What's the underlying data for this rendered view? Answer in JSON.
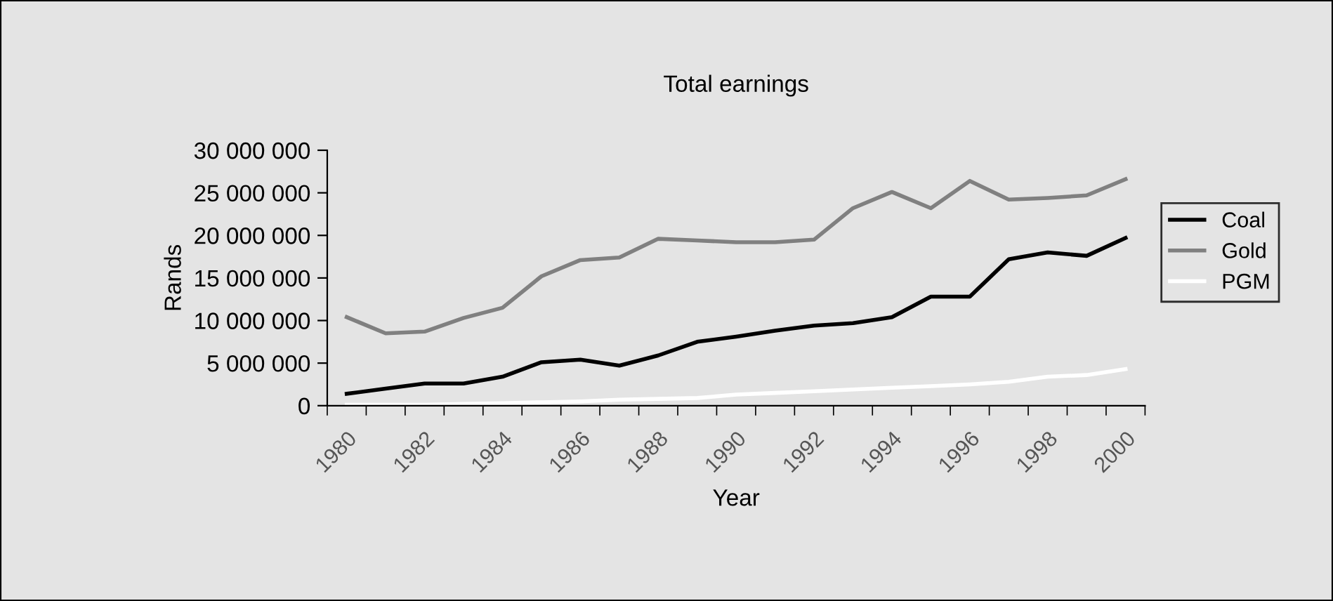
{
  "chart_data": {
    "type": "line",
    "title": "Total earnings",
    "xlabel": "Year",
    "ylabel": "Rands",
    "categories": [
      "1980",
      null,
      "1982",
      null,
      "1984",
      null,
      "1986",
      null,
      "1988",
      null,
      "1990",
      null,
      "1992",
      null,
      "1994",
      null,
      "1996",
      null,
      "1998",
      null,
      "2000"
    ],
    "series": [
      {
        "name": "Coal",
        "color": "#000000",
        "values": [
          1400000,
          2000000,
          2600000,
          2600000,
          3400000,
          5100000,
          5400000,
          4700000,
          5900000,
          7500000,
          8100000,
          8800000,
          9400000,
          9700000,
          10400000,
          12800000,
          12800000,
          17200000,
          18000000,
          17600000,
          19700000
        ]
      },
      {
        "name": "Gold",
        "color": "#808080",
        "values": [
          10400000,
          8500000,
          8700000,
          10300000,
          11500000,
          15200000,
          17100000,
          17400000,
          19600000,
          19400000,
          19200000,
          19200000,
          19500000,
          23200000,
          25100000,
          23200000,
          26400000,
          24200000,
          24400000,
          24700000,
          26600000
        ]
      },
      {
        "name": "PGM",
        "color": "#ffffff",
        "values": [
          100000,
          100000,
          100000,
          200000,
          300000,
          400000,
          500000,
          700000,
          800000,
          900000,
          1300000,
          1500000,
          1700000,
          1900000,
          2100000,
          2300000,
          2500000,
          2800000,
          3400000,
          3600000,
          4300000
        ]
      }
    ],
    "ylim": [
      0,
      30000000
    ],
    "yticks": [
      {
        "value": 0,
        "label": "0"
      },
      {
        "value": 5000000,
        "label": "5 000 000"
      },
      {
        "value": 10000000,
        "label": "10 000 000"
      },
      {
        "value": 15000000,
        "label": "15 000 000"
      },
      {
        "value": 20000000,
        "label": "20 000 000"
      },
      {
        "value": 25000000,
        "label": "25 000 000"
      },
      {
        "value": 30000000,
        "label": "30 000 000"
      }
    ],
    "grid": false,
    "legend": "right",
    "marker": "none",
    "line_style": "solid"
  }
}
